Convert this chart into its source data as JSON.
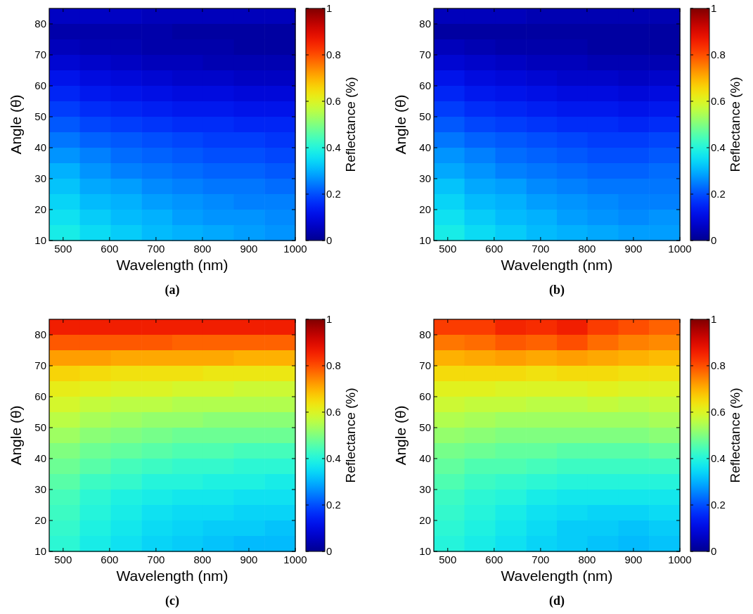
{
  "chart_data": [
    {
      "type": "heatmap",
      "xlabel": "Wavelength (nm)",
      "ylabel": "Angle (θ)",
      "clabel": "Reflectance (%)",
      "annotations": [
        "(a)"
      ],
      "x": [
        503,
        569,
        636,
        702,
        768,
        834,
        901,
        967
      ],
      "y": [
        82.5,
        77.5,
        72.5,
        67.5,
        62.5,
        57.5,
        52.5,
        47.5,
        42.5,
        37.5,
        32.5,
        27.5,
        22.5,
        17.5,
        12.5
      ],
      "xlim": [
        470,
        1000
      ],
      "xticks": [
        500,
        600,
        700,
        800,
        900,
        1000
      ],
      "ylim": [
        10,
        85
      ],
      "yticks": [
        10,
        20,
        30,
        40,
        50,
        60,
        70,
        80
      ],
      "clim": [
        0,
        1
      ],
      "cticks": [
        0,
        0.2,
        0.4,
        0.6,
        0.8,
        1
      ],
      "cells": [
        [
          0.06,
          0.06,
          0.06,
          0.05,
          0.05,
          0.05,
          0.05,
          0.05
        ],
        [
          0.03,
          0.03,
          0.03,
          0.03,
          0.02,
          0.02,
          0.02,
          0.02
        ],
        [
          0.05,
          0.04,
          0.04,
          0.03,
          0.03,
          0.03,
          0.02,
          0.02
        ],
        [
          0.08,
          0.07,
          0.06,
          0.05,
          0.05,
          0.04,
          0.04,
          0.04
        ],
        [
          0.12,
          0.1,
          0.09,
          0.08,
          0.07,
          0.07,
          0.06,
          0.06
        ],
        [
          0.15,
          0.13,
          0.12,
          0.11,
          0.1,
          0.1,
          0.09,
          0.09
        ],
        [
          0.18,
          0.16,
          0.15,
          0.14,
          0.13,
          0.13,
          0.12,
          0.12
        ],
        [
          0.21,
          0.19,
          0.18,
          0.17,
          0.16,
          0.16,
          0.15,
          0.15
        ],
        [
          0.24,
          0.22,
          0.21,
          0.2,
          0.19,
          0.18,
          0.18,
          0.17
        ],
        [
          0.27,
          0.25,
          0.23,
          0.22,
          0.21,
          0.2,
          0.2,
          0.19
        ],
        [
          0.3,
          0.27,
          0.25,
          0.24,
          0.23,
          0.22,
          0.22,
          0.21
        ],
        [
          0.32,
          0.29,
          0.28,
          0.26,
          0.25,
          0.24,
          0.24,
          0.23
        ],
        [
          0.34,
          0.31,
          0.3,
          0.28,
          0.27,
          0.26,
          0.25,
          0.25
        ],
        [
          0.36,
          0.33,
          0.31,
          0.3,
          0.28,
          0.27,
          0.27,
          0.26
        ],
        [
          0.38,
          0.35,
          0.33,
          0.31,
          0.3,
          0.29,
          0.28,
          0.27
        ]
      ]
    },
    {
      "type": "heatmap",
      "xlabel": "Wavelength (nm)",
      "ylabel": "Angle (θ)",
      "clabel": "Reflectance (%)",
      "annotations": [
        "(b)"
      ],
      "x": [
        503,
        569,
        636,
        702,
        768,
        834,
        901,
        967
      ],
      "y": [
        82.5,
        77.5,
        72.5,
        67.5,
        62.5,
        57.5,
        52.5,
        47.5,
        42.5,
        37.5,
        32.5,
        27.5,
        22.5,
        17.5,
        12.5
      ],
      "xlim": [
        470,
        1000
      ],
      "xticks": [
        500,
        600,
        700,
        800,
        900,
        1000
      ],
      "ylim": [
        10,
        85
      ],
      "yticks": [
        10,
        20,
        30,
        40,
        50,
        60,
        70,
        80
      ],
      "clim": [
        0,
        1
      ],
      "cticks": [
        0,
        0.2,
        0.4,
        0.6,
        0.8,
        1
      ],
      "cells": [
        [
          0.05,
          0.05,
          0.05,
          0.04,
          0.04,
          0.04,
          0.04,
          0.04
        ],
        [
          0.02,
          0.02,
          0.02,
          0.02,
          0.02,
          0.02,
          0.02,
          0.02
        ],
        [
          0.05,
          0.04,
          0.03,
          0.03,
          0.03,
          0.02,
          0.02,
          0.02
        ],
        [
          0.08,
          0.07,
          0.06,
          0.05,
          0.05,
          0.04,
          0.04,
          0.04
        ],
        [
          0.12,
          0.1,
          0.09,
          0.08,
          0.07,
          0.07,
          0.06,
          0.07
        ],
        [
          0.15,
          0.13,
          0.12,
          0.11,
          0.1,
          0.1,
          0.09,
          0.1
        ],
        [
          0.18,
          0.16,
          0.15,
          0.14,
          0.13,
          0.13,
          0.12,
          0.13
        ],
        [
          0.21,
          0.19,
          0.18,
          0.17,
          0.16,
          0.16,
          0.15,
          0.16
        ],
        [
          0.24,
          0.22,
          0.21,
          0.2,
          0.19,
          0.18,
          0.18,
          0.19
        ],
        [
          0.27,
          0.25,
          0.23,
          0.22,
          0.21,
          0.2,
          0.2,
          0.21
        ],
        [
          0.29,
          0.27,
          0.25,
          0.24,
          0.23,
          0.22,
          0.22,
          0.23
        ],
        [
          0.32,
          0.29,
          0.28,
          0.26,
          0.25,
          0.24,
          0.24,
          0.24
        ],
        [
          0.34,
          0.31,
          0.3,
          0.28,
          0.27,
          0.26,
          0.25,
          0.25
        ],
        [
          0.36,
          0.33,
          0.31,
          0.3,
          0.28,
          0.27,
          0.26,
          0.27
        ],
        [
          0.38,
          0.35,
          0.33,
          0.31,
          0.3,
          0.29,
          0.28,
          0.28
        ]
      ]
    },
    {
      "type": "heatmap",
      "xlabel": "Wavelength (nm)",
      "ylabel": "Angle (θ)",
      "clabel": "Reflectance (%)",
      "annotations": [
        "(c)"
      ],
      "x": [
        503,
        569,
        636,
        702,
        768,
        834,
        901,
        967
      ],
      "y": [
        82.5,
        77.5,
        72.5,
        67.5,
        62.5,
        57.5,
        52.5,
        47.5,
        42.5,
        37.5,
        32.5,
        27.5,
        22.5,
        17.5,
        12.5
      ],
      "xlim": [
        470,
        1000
      ],
      "xticks": [
        500,
        600,
        700,
        800,
        900,
        1000
      ],
      "ylim": [
        10,
        85
      ],
      "yticks": [
        10,
        20,
        30,
        40,
        50,
        60,
        70,
        80
      ],
      "clim": [
        0,
        1
      ],
      "cticks": [
        0,
        0.2,
        0.4,
        0.6,
        0.8,
        1
      ],
      "cells": [
        [
          0.86,
          0.86,
          0.86,
          0.86,
          0.86,
          0.86,
          0.86,
          0.86
        ],
        [
          0.79,
          0.79,
          0.79,
          0.79,
          0.78,
          0.78,
          0.78,
          0.78
        ],
        [
          0.72,
          0.72,
          0.71,
          0.71,
          0.71,
          0.71,
          0.7,
          0.7
        ],
        [
          0.66,
          0.65,
          0.64,
          0.64,
          0.64,
          0.63,
          0.63,
          0.63
        ],
        [
          0.62,
          0.61,
          0.6,
          0.6,
          0.59,
          0.59,
          0.58,
          0.58
        ],
        [
          0.59,
          0.57,
          0.56,
          0.56,
          0.55,
          0.55,
          0.55,
          0.55
        ],
        [
          0.56,
          0.54,
          0.53,
          0.52,
          0.52,
          0.51,
          0.51,
          0.51
        ],
        [
          0.53,
          0.51,
          0.5,
          0.49,
          0.48,
          0.48,
          0.48,
          0.48
        ],
        [
          0.5,
          0.48,
          0.47,
          0.46,
          0.45,
          0.45,
          0.44,
          0.44
        ],
        [
          0.48,
          0.46,
          0.44,
          0.43,
          0.42,
          0.42,
          0.41,
          0.41
        ],
        [
          0.46,
          0.43,
          0.42,
          0.4,
          0.4,
          0.39,
          0.39,
          0.38
        ],
        [
          0.44,
          0.41,
          0.39,
          0.38,
          0.37,
          0.37,
          0.36,
          0.36
        ],
        [
          0.43,
          0.4,
          0.38,
          0.36,
          0.35,
          0.35,
          0.34,
          0.34
        ],
        [
          0.42,
          0.39,
          0.37,
          0.35,
          0.34,
          0.33,
          0.33,
          0.32
        ],
        [
          0.41,
          0.38,
          0.36,
          0.34,
          0.33,
          0.32,
          0.31,
          0.31
        ]
      ]
    },
    {
      "type": "heatmap",
      "xlabel": "Wavelength (nm)",
      "ylabel": "Angle (θ)",
      "clabel": "Reflectance (%)",
      "annotations": [
        "(d)"
      ],
      "x": [
        503,
        569,
        636,
        702,
        768,
        834,
        901,
        967
      ],
      "y": [
        82.5,
        77.5,
        72.5,
        67.5,
        62.5,
        57.5,
        52.5,
        47.5,
        42.5,
        37.5,
        32.5,
        27.5,
        22.5,
        17.5,
        12.5
      ],
      "xlim": [
        470,
        1000
      ],
      "xticks": [
        500,
        600,
        700,
        800,
        900,
        1000
      ],
      "ylim": [
        10,
        85
      ],
      "yticks": [
        10,
        20,
        30,
        40,
        50,
        60,
        70,
        80
      ],
      "clim": [
        0,
        1
      ],
      "cticks": [
        0,
        0.2,
        0.4,
        0.6,
        0.8,
        1
      ],
      "cells": [
        [
          0.82,
          0.82,
          0.85,
          0.84,
          0.86,
          0.82,
          0.8,
          0.78
        ],
        [
          0.76,
          0.77,
          0.79,
          0.78,
          0.8,
          0.77,
          0.75,
          0.74
        ],
        [
          0.7,
          0.71,
          0.72,
          0.71,
          0.72,
          0.71,
          0.7,
          0.69
        ],
        [
          0.65,
          0.65,
          0.65,
          0.64,
          0.65,
          0.65,
          0.64,
          0.64
        ],
        [
          0.61,
          0.61,
          0.6,
          0.6,
          0.6,
          0.61,
          0.6,
          0.6
        ],
        [
          0.58,
          0.57,
          0.57,
          0.56,
          0.56,
          0.57,
          0.56,
          0.57
        ],
        [
          0.55,
          0.54,
          0.53,
          0.53,
          0.53,
          0.53,
          0.53,
          0.54
        ],
        [
          0.52,
          0.51,
          0.5,
          0.5,
          0.5,
          0.5,
          0.5,
          0.51
        ],
        [
          0.49,
          0.48,
          0.47,
          0.47,
          0.46,
          0.46,
          0.46,
          0.47
        ],
        [
          0.47,
          0.45,
          0.45,
          0.44,
          0.43,
          0.43,
          0.43,
          0.43
        ],
        [
          0.45,
          0.43,
          0.42,
          0.41,
          0.4,
          0.4,
          0.4,
          0.4
        ],
        [
          0.43,
          0.41,
          0.4,
          0.38,
          0.37,
          0.37,
          0.37,
          0.37
        ],
        [
          0.42,
          0.4,
          0.38,
          0.36,
          0.35,
          0.34,
          0.34,
          0.35
        ],
        [
          0.41,
          0.39,
          0.37,
          0.35,
          0.33,
          0.33,
          0.32,
          0.33
        ],
        [
          0.4,
          0.38,
          0.36,
          0.34,
          0.33,
          0.32,
          0.31,
          0.32
        ]
      ]
    }
  ]
}
